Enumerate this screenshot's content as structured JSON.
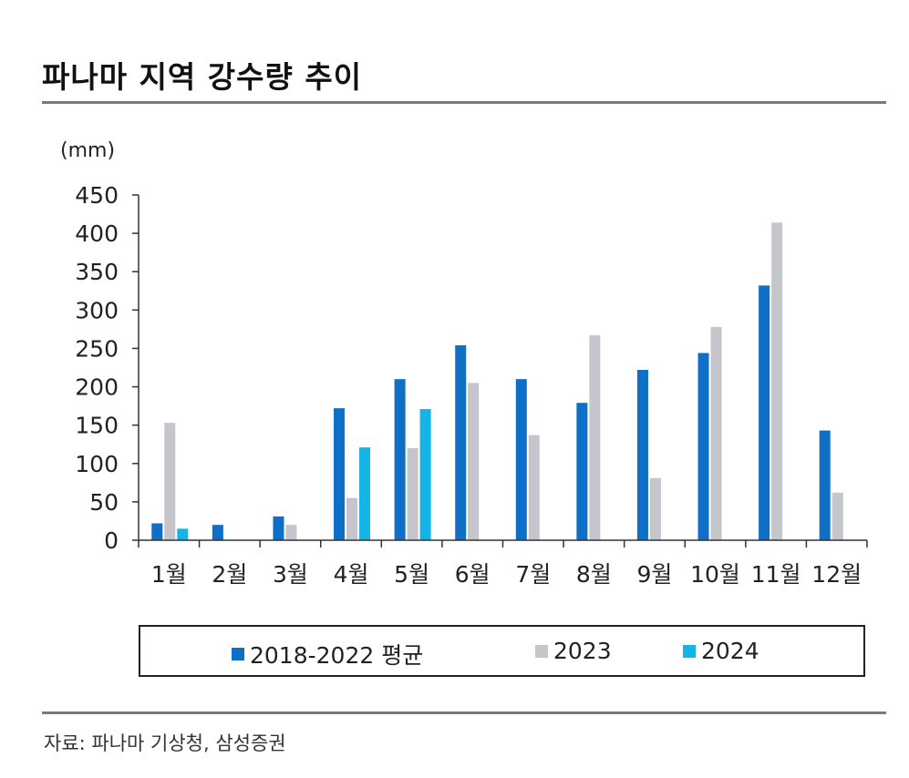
{
  "title": "파나마 지역 강수량 추이",
  "source": "자료: 파나마 기상청, 삼성증권",
  "chart_data": {
    "type": "bar",
    "unit": "(mm)",
    "categories": [
      "1월",
      "2월",
      "3월",
      "4월",
      "5월",
      "6월",
      "7월",
      "8월",
      "9월",
      "10월",
      "11월",
      "12월"
    ],
    "ylim": [
      0,
      450
    ],
    "yticks": [
      0,
      50,
      100,
      150,
      200,
      250,
      300,
      350,
      400,
      450
    ],
    "grid": false,
    "legend_position": "bottom",
    "series": [
      {
        "name": "2018-2022 평균",
        "color": "#0f6fc6",
        "values": [
          22,
          20,
          31,
          172,
          210,
          254,
          210,
          179,
          222,
          244,
          332,
          143
        ]
      },
      {
        "name": "2023",
        "color": "#c4c6cc",
        "values": [
          153,
          0,
          20,
          55,
          120,
          205,
          137,
          267,
          81,
          278,
          414,
          62
        ]
      },
      {
        "name": "2024",
        "color": "#14b4e6",
        "values": [
          15,
          null,
          null,
          121,
          171,
          null,
          null,
          null,
          null,
          null,
          null,
          null
        ]
      }
    ]
  }
}
